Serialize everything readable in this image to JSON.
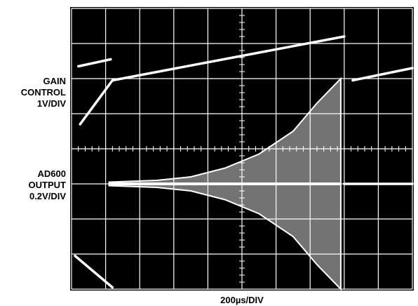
{
  "chart_data": {
    "type": "line",
    "instrument": "oscilloscope",
    "channel_labels": [
      [
        "GAIN",
        "CONTROL",
        "1V/DIV"
      ],
      [
        "AD600",
        "OUTPUT",
        "0.2V/DIV"
      ]
    ],
    "xlabel": "200µs/DIV",
    "grid": true,
    "divisions": {
      "x": 10,
      "y": 8
    },
    "x_range_div": [
      0,
      10
    ],
    "y_range_div": [
      0,
      8
    ],
    "colors": {
      "background": "#000000",
      "grid": "#ffffff",
      "trace": "#ffffff"
    },
    "series": [
      {
        "channel": 1,
        "kind": "trace",
        "segments": [
          [
            [
              0.2,
              6.35
            ],
            [
              1.15,
              6.55
            ]
          ],
          [
            [
              0.25,
              4.7
            ],
            [
              1.2,
              5.95
            ]
          ],
          [
            [
              1.2,
              5.95
            ],
            [
              8.0,
              7.2
            ]
          ],
          [
            [
              8.25,
              5.95
            ],
            [
              10.0,
              6.3
            ]
          ]
        ]
      },
      {
        "channel": 2,
        "kind": "envelope",
        "center": 3.0,
        "start": 1.1,
        "end": 7.9,
        "points": [
          [
            1.1,
            0.05
          ],
          [
            2.5,
            0.1
          ],
          [
            3.5,
            0.2
          ],
          [
            4.5,
            0.45
          ],
          [
            5.5,
            0.85
          ],
          [
            6.5,
            1.5
          ],
          [
            7.2,
            2.3
          ],
          [
            7.9,
            3.0
          ]
        ]
      },
      {
        "channel": 2,
        "kind": "trace",
        "segments": [
          [
            [
              8.0,
              3.0
            ],
            [
              10.0,
              3.0
            ]
          ],
          [
            [
              0.1,
              0.95
            ],
            [
              1.2,
              0.05
            ]
          ]
        ]
      }
    ]
  }
}
